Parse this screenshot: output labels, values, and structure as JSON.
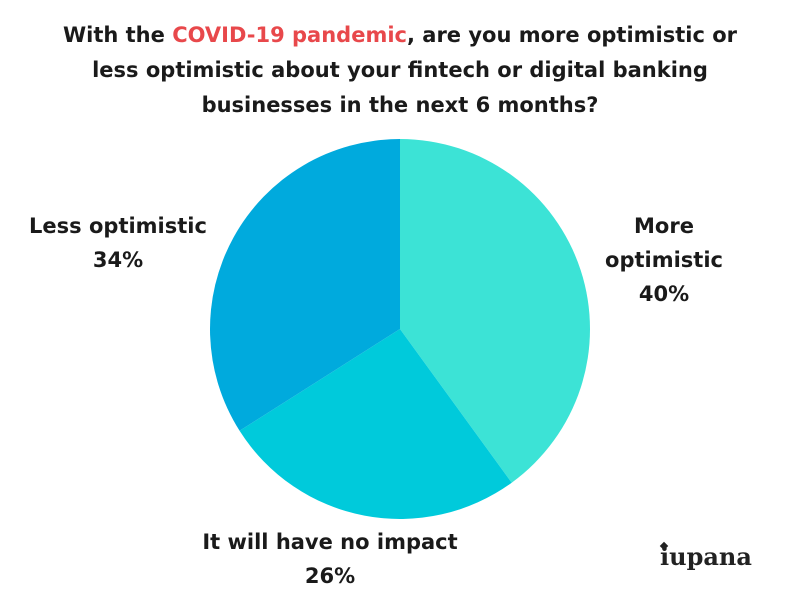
{
  "title": {
    "prefix": "With the ",
    "highlight": "COVID-19 pandemic",
    "line1_rest": ", are you more optimistic or",
    "line2": "less optimistic about your fintech or digital banking",
    "line3": "businesses in the next 6 months?",
    "highlight_color": "#e8484b"
  },
  "chart_data": {
    "type": "pie",
    "slices": [
      {
        "label": "More optimistic",
        "label_lines": [
          "More",
          "optimistic"
        ],
        "value": 40,
        "value_label": "40%",
        "color": "#3ce3d6"
      },
      {
        "label": "It will have no impact",
        "label_lines": [
          "It will have no impact"
        ],
        "value": 26,
        "value_label": "26%",
        "color": "#00cadb"
      },
      {
        "label": "Less optimistic",
        "label_lines": [
          "Less optimistic"
        ],
        "value": 34,
        "value_label": "34%",
        "color": "#00aadd"
      }
    ],
    "start_angle_deg": 0,
    "direction": "clockwise"
  },
  "logo": {
    "text": "iupana"
  }
}
